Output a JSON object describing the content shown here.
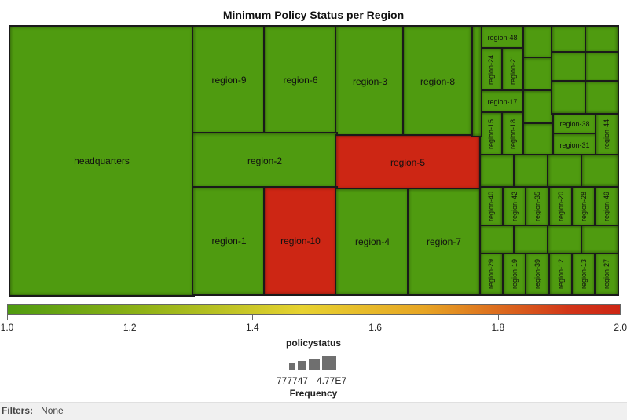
{
  "chart_data": {
    "type": "treemap",
    "title": "Minimum Policy Status per Region",
    "color_metric": "policystatus",
    "size_metric": "Frequency",
    "color_range": [
      1.0,
      2.0
    ],
    "color_ticks": [
      "1.0",
      "1.2",
      "1.4",
      "1.6",
      "1.8",
      "2.0"
    ],
    "size_legend": [
      "777747",
      "4.77E7"
    ],
    "colors": {
      "ok": "#4f9b10",
      "bad": "#cd2614"
    },
    "cells": [
      {
        "label": "headquarters",
        "policystatus": 1.0
      },
      {
        "label": "region-9",
        "policystatus": 1.0
      },
      {
        "label": "region-6",
        "policystatus": 1.0
      },
      {
        "label": "region-3",
        "policystatus": 1.0
      },
      {
        "label": "region-8",
        "policystatus": 1.0
      },
      {
        "label": "region-2",
        "policystatus": 1.0
      },
      {
        "label": "region-5",
        "policystatus": 2.0
      },
      {
        "label": "region-1",
        "policystatus": 1.0
      },
      {
        "label": "region-10",
        "policystatus": 2.0
      },
      {
        "label": "region-4",
        "policystatus": 1.0
      },
      {
        "label": "region-7",
        "policystatus": 1.0
      },
      {
        "label": "region-48",
        "policystatus": 1.0
      },
      {
        "label": "region-24",
        "policystatus": 1.0
      },
      {
        "label": "region-21",
        "policystatus": 1.0
      },
      {
        "label": "region-17",
        "policystatus": 1.0
      },
      {
        "label": "region-15",
        "policystatus": 1.0
      },
      {
        "label": "region-18",
        "policystatus": 1.0
      },
      {
        "label": "region-38",
        "policystatus": 1.0
      },
      {
        "label": "region-31",
        "policystatus": 1.0
      },
      {
        "label": "region-44",
        "policystatus": 1.0
      },
      {
        "label": "region-40",
        "policystatus": 1.0
      },
      {
        "label": "region-42",
        "policystatus": 1.0
      },
      {
        "label": "region-35",
        "policystatus": 1.0
      },
      {
        "label": "region-20",
        "policystatus": 1.0
      },
      {
        "label": "region-28",
        "policystatus": 1.0
      },
      {
        "label": "region-49",
        "policystatus": 1.0
      },
      {
        "label": "region-29",
        "policystatus": 1.0
      },
      {
        "label": "region-19",
        "policystatus": 1.0
      },
      {
        "label": "region-39",
        "policystatus": 1.0
      },
      {
        "label": "region-12",
        "policystatus": 1.0
      },
      {
        "label": "region-13",
        "policystatus": 1.0
      },
      {
        "label": "region-27",
        "policystatus": 1.0
      },
      {
        "label": "",
        "policystatus": 1.0
      },
      {
        "label": "",
        "policystatus": 1.0
      },
      {
        "label": "",
        "policystatus": 1.0
      },
      {
        "label": "",
        "policystatus": 1.0
      },
      {
        "label": "",
        "policystatus": 1.0
      },
      {
        "label": "",
        "policystatus": 1.0
      },
      {
        "label": "",
        "policystatus": 1.0
      },
      {
        "label": "",
        "policystatus": 1.0
      },
      {
        "label": "",
        "policystatus": 1.0
      },
      {
        "label": "",
        "policystatus": 1.0
      },
      {
        "label": "",
        "policystatus": 1.0
      },
      {
        "label": "",
        "policystatus": 1.0
      },
      {
        "label": "",
        "policystatus": 1.0
      },
      {
        "label": "",
        "policystatus": 1.0
      },
      {
        "label": "",
        "policystatus": 1.0
      },
      {
        "label": "",
        "policystatus": 1.0
      },
      {
        "label": "",
        "policystatus": 1.0
      },
      {
        "label": "",
        "policystatus": 1.0
      },
      {
        "label": "",
        "policystatus": 1.0
      }
    ]
  },
  "filters": {
    "label": "Filters:",
    "value": "None"
  }
}
